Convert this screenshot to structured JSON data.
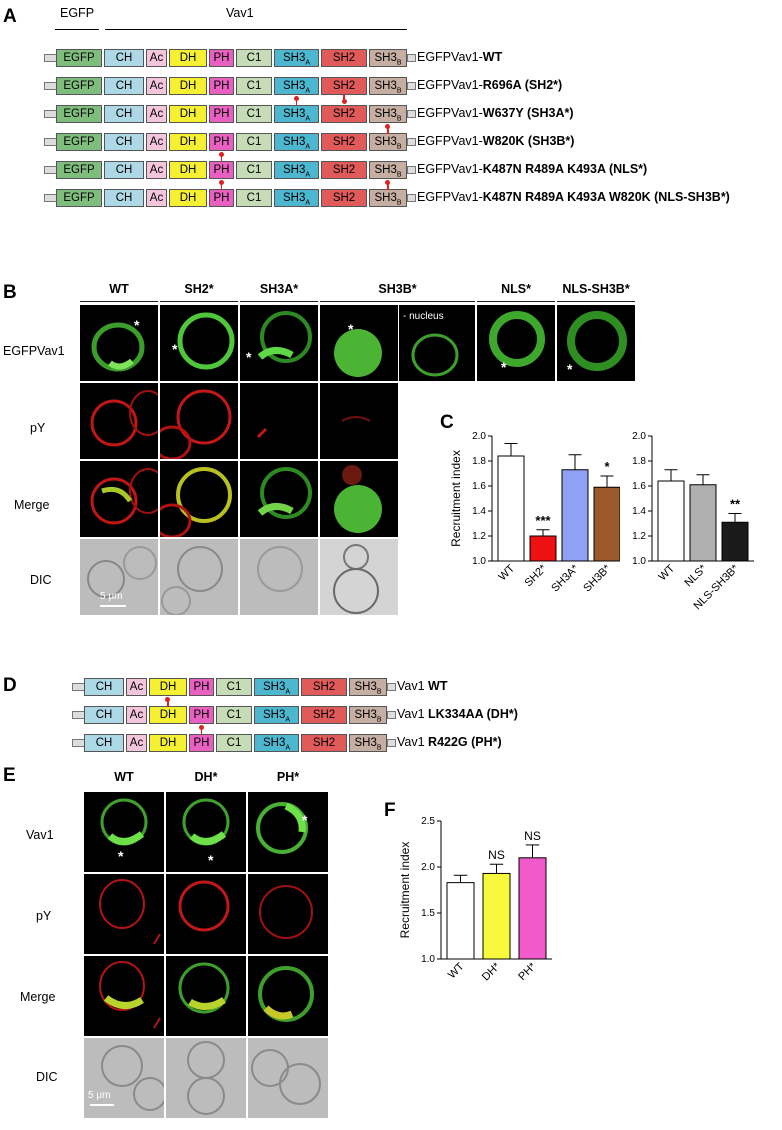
{
  "panels": {
    "A": "A",
    "B": "B",
    "C": "C",
    "D": "D",
    "E": "E",
    "F": "F"
  },
  "headers": {
    "egfp": "EGFP",
    "vav1": "Vav1"
  },
  "domains": {
    "egfp": "EGFP",
    "ch": "CH",
    "ac": "Ac",
    "dh": "DH",
    "ph": "PH",
    "c1": "C1",
    "sh3a": "SH3",
    "sh3a_sub": "A",
    "sh2": "SH2",
    "sh3b": "SH3",
    "sh3b_sub": "B"
  },
  "domain_colors": {
    "egfp": "#7dbe7d",
    "ch": "#add8e6",
    "ac": "#f4c6dd",
    "dh": "#f5f032",
    "ph": "#e860c0",
    "c1": "#c6dcb6",
    "sh3a": "#4db7d0",
    "sh2": "#e05a5a",
    "sh3b": "#c7aea2"
  },
  "constructs_A": [
    {
      "prefix": "EGFPVav1-",
      "bold": "WT",
      "suffix": ""
    },
    {
      "prefix": "EGFPVav1-",
      "bold": "R696A",
      "suffix": "  (SH2*)"
    },
    {
      "prefix": "EGFPVav1-",
      "bold": "W637Y",
      "suffix": " (SH3A*)"
    },
    {
      "prefix": "EGFPVav1-",
      "bold": "W820K",
      "suffix": " (SH3B*)"
    },
    {
      "prefix": "EGFPVav1-",
      "bold": "K487N R489A K493A",
      "suffix": " (NLS*)"
    },
    {
      "prefix": "EGFPVav1-",
      "bold": "K487N R489A K493A W820K",
      "suffix": " (NLS-SH3B*)"
    }
  ],
  "constructs_D": [
    {
      "prefix": "Vav1 ",
      "bold": "WT",
      "suffix": ""
    },
    {
      "prefix": "Vav1 ",
      "bold": "LK334AA",
      "suffix": " (DH*)"
    },
    {
      "prefix": "Vav1 ",
      "bold": "R422G",
      "suffix": " (PH*)"
    }
  ],
  "panelB": {
    "columns": [
      "WT",
      "SH2*",
      "SH3A*",
      "SH3B*",
      "NLS*",
      "NLS-SH3B*"
    ],
    "rows": [
      "EGFPVav1",
      "pY",
      "Merge",
      "DIC"
    ],
    "nucleus_note": "- nucleus",
    "star": "*",
    "scale": "5 μm"
  },
  "panelE": {
    "columns": [
      "WT",
      "DH*",
      "PH*"
    ],
    "rows": [
      "Vav1",
      "pY",
      "Merge",
      "DIC"
    ],
    "star": "*",
    "scale": "5 μm"
  },
  "chart_data": [
    {
      "type": "bar",
      "ylabel": "Recruitment index",
      "ylim": [
        1.0,
        2.0
      ],
      "yticks": [
        "1.0",
        "1.2",
        "1.4",
        "1.6",
        "1.8",
        "2.0"
      ],
      "categories": [
        "WT",
        "SH2*",
        "SH3A*",
        "SH3B*"
      ],
      "values": [
        1.84,
        1.2,
        1.73,
        1.59
      ],
      "errors": [
        0.1,
        0.05,
        0.12,
        0.09
      ],
      "colors": [
        "#ffffff",
        "#ee1111",
        "#8fa0f5",
        "#9b5a2a"
      ],
      "significance": [
        "",
        "***",
        "",
        "*"
      ]
    },
    {
      "type": "bar",
      "ylabel": "",
      "ylim": [
        1.0,
        2.0
      ],
      "yticks": [
        "1.0",
        "1.2",
        "1.4",
        "1.6",
        "1.8",
        "2.0"
      ],
      "categories": [
        "WT",
        "NLS*",
        "NLS-SH3B*"
      ],
      "values": [
        1.64,
        1.61,
        1.31
      ],
      "errors": [
        0.09,
        0.08,
        0.07
      ],
      "colors": [
        "#ffffff",
        "#b0b0b0",
        "#1a1a1a"
      ],
      "significance": [
        "",
        "",
        "**"
      ]
    },
    {
      "type": "bar",
      "ylabel": "Recruitment index",
      "ylim": [
        1.0,
        2.5
      ],
      "yticks": [
        "1.0",
        "1.5",
        "2.0",
        "2.5"
      ],
      "categories": [
        "WT",
        "DH*",
        "PH*"
      ],
      "values": [
        1.83,
        1.93,
        2.1
      ],
      "errors": [
        0.08,
        0.1,
        0.14
      ],
      "colors": [
        "#ffffff",
        "#f8f83c",
        "#f05acb"
      ],
      "significance": [
        "",
        "NS",
        "NS"
      ]
    }
  ]
}
